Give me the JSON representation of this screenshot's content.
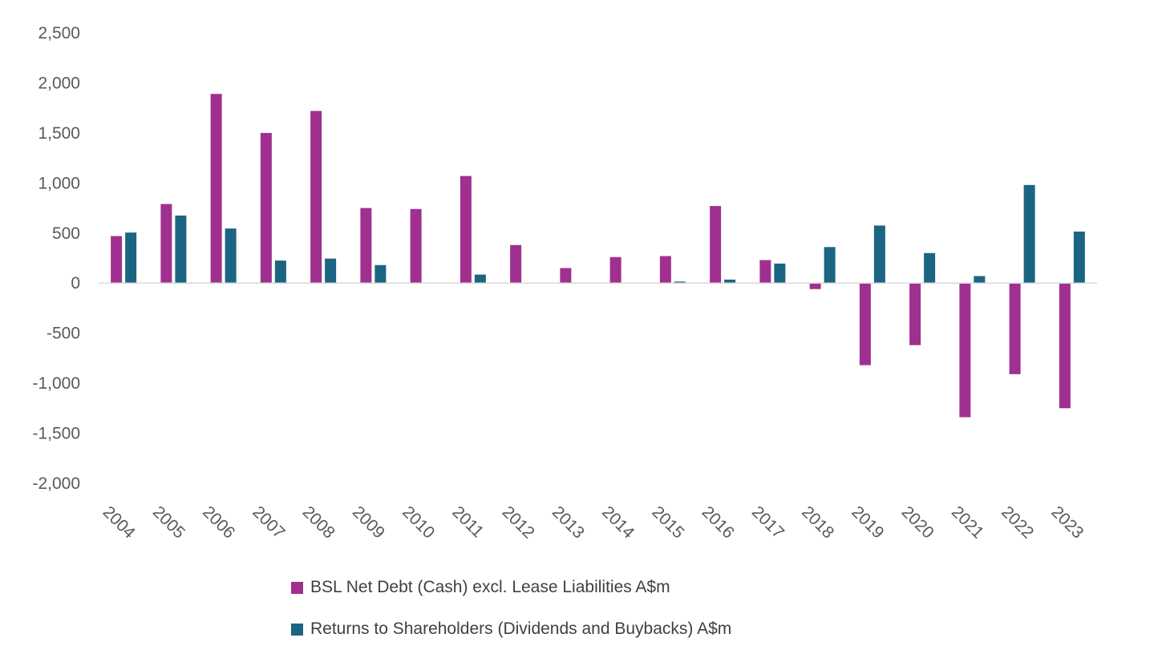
{
  "chart_data": {
    "type": "bar",
    "title": "",
    "xlabel": "",
    "ylabel": "",
    "ylim": [
      -2000,
      2500
    ],
    "yticks": [
      2500,
      2000,
      1500,
      1000,
      500,
      0,
      -500,
      -1000,
      -1500,
      -2000
    ],
    "ytick_labels": [
      "2,500",
      "2,000",
      "1,500",
      "1,000",
      "500",
      "0",
      "-500",
      "-1,000",
      "-1,500",
      "-2,000"
    ],
    "grid": false,
    "legend_position": "bottom",
    "categories": [
      "2004",
      "2005",
      "2006",
      "2007",
      "2008",
      "2009",
      "2010",
      "2011",
      "2012",
      "2013",
      "2014",
      "2015",
      "2016",
      "2017",
      "2018",
      "2019",
      "2020",
      "2021",
      "2022",
      "2023"
    ],
    "series": [
      {
        "name": "BSL Net Debt (Cash) excl. Lease Liabilities A$m",
        "color": "#a0308f",
        "values": [
          470,
          790,
          1890,
          1500,
          1720,
          750,
          740,
          1070,
          380,
          150,
          260,
          270,
          770,
          230,
          -60,
          -820,
          -620,
          -1340,
          -910,
          -1250
        ]
      },
      {
        "name": "Returns to Shareholders (Dividends and Buybacks) A$m",
        "color": "#1b6583",
        "values": [
          505,
          675,
          545,
          225,
          245,
          180,
          0,
          85,
          0,
          0,
          0,
          15,
          35,
          195,
          360,
          575,
          300,
          70,
          980,
          515
        ]
      }
    ]
  }
}
